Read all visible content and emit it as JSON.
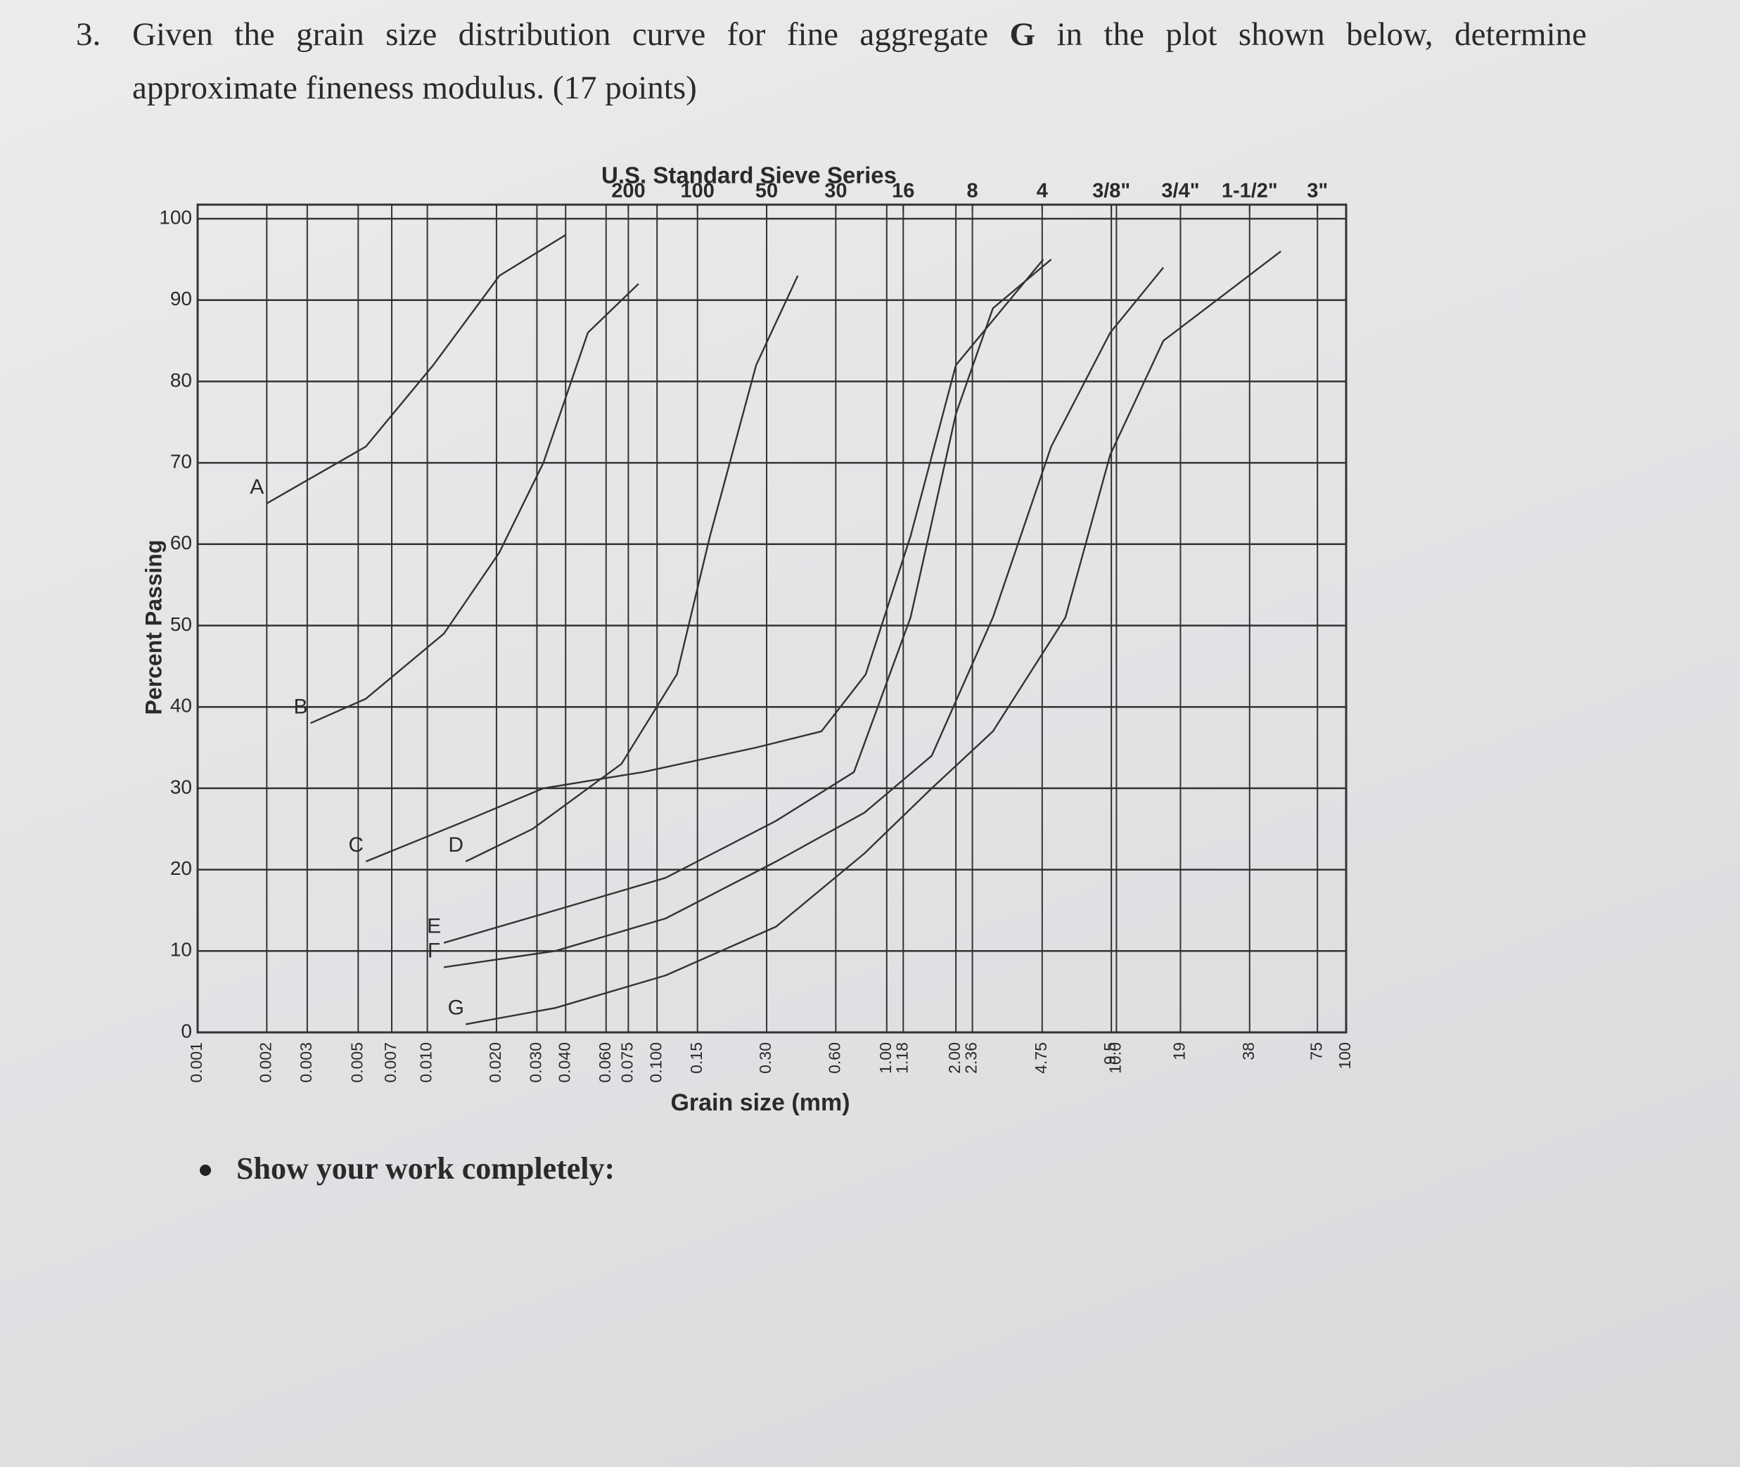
{
  "question": {
    "number": "3.",
    "line1": [
      "Given the grain size distribution curve for fine aggregate ",
      "G",
      " in the plot shown below, determine"
    ],
    "line2": "approximate fineness modulus. (17 points)"
  },
  "chart_data": {
    "type": "line",
    "title": "U.S. Standard Sieve Series",
    "x_label": "Grain size (mm)",
    "y_label": "Percent Passing",
    "x_log": true,
    "grid": true,
    "color": "#333333",
    "xlim": [
      0.001,
      100
    ],
    "ylim": [
      0,
      100
    ],
    "yticks": [
      0,
      10,
      20,
      30,
      40,
      50,
      60,
      70,
      80,
      90,
      100
    ],
    "xticks": [
      0.001,
      0.002,
      0.003,
      0.005,
      0.007,
      {
        "value": 0.01,
        "label": "0.010"
      },
      {
        "value": 0.02,
        "label": "0.020"
      },
      {
        "value": 0.03,
        "label": "0.030"
      },
      {
        "value": 0.04,
        "label": "0.040"
      },
      {
        "value": 0.06,
        "label": "0.060"
      },
      0.075,
      {
        "value": 0.1,
        "label": "0.100"
      },
      0.15,
      {
        "value": 0.3,
        "label": "0.30"
      },
      {
        "value": 0.6,
        "label": "0.60"
      },
      {
        "value": 1,
        "label": "1.00"
      },
      1.18,
      {
        "value": 2,
        "label": "2.00"
      },
      2.36,
      4.75,
      9.5,
      {
        "value": 10,
        "label": "10.0"
      },
      19,
      38,
      75,
      100
    ],
    "x2ticks": [
      {
        "value": 0.075,
        "label": "200"
      },
      {
        "value": 0.15,
        "label": "100"
      },
      {
        "value": 0.3,
        "label": "50"
      },
      {
        "value": 0.6,
        "label": "30"
      },
      {
        "value": 1.18,
        "label": "16"
      },
      {
        "value": 2.36,
        "label": "8"
      },
      {
        "value": 4.75,
        "label": "4"
      },
      {
        "value": 9.5,
        "label": "3/8\""
      },
      {
        "value": 19,
        "label": "3/4\""
      },
      {
        "value": 38,
        "label": "1-1/2\""
      },
      {
        "value": 75,
        "label": "3\""
      }
    ],
    "series": [
      {
        "name": "A",
        "x": [
          0.002,
          0.0054,
          0.0106,
          0.0206,
          0.04
        ],
        "values": [
          65,
          72,
          82,
          93,
          98
        ]
      },
      {
        "name": "B",
        "x": [
          0.0031,
          0.0054,
          0.0118,
          0.0206,
          0.032,
          0.05,
          0.083
        ],
        "values": [
          38,
          41,
          49,
          59,
          70,
          86,
          92
        ]
      },
      {
        "name": "C",
        "x": [
          0.0054,
          0.0147,
          0.032,
          0.087,
          0.27,
          0.52,
          0.81,
          1.27,
          2.0,
          4.8
        ],
        "values": [
          21,
          26,
          30,
          32,
          35,
          37,
          44,
          61,
          82,
          95
        ]
      },
      {
        "name": "D",
        "x": [
          0.0147,
          0.0287,
          0.07,
          0.122,
          0.17,
          0.27,
          0.41
        ],
        "values": [
          21,
          25,
          33,
          44,
          61,
          82,
          93
        ]
      },
      {
        "name": "E",
        "x": [
          0.0118,
          0.036,
          0.109,
          0.33,
          0.72,
          1.27,
          2.0,
          2.9,
          5.2
        ],
        "values": [
          11,
          15,
          19,
          26,
          32,
          51,
          76,
          89,
          95
        ]
      },
      {
        "name": "F",
        "x": [
          0.0118,
          0.036,
          0.109,
          0.33,
          0.8,
          1.57,
          2.9,
          5.2,
          9.4,
          16
        ],
        "values": [
          8,
          10,
          14,
          21,
          27,
          34,
          51,
          72,
          86,
          94
        ]
      },
      {
        "name": "G",
        "x": [
          0.0147,
          0.036,
          0.109,
          0.33,
          0.8,
          1.57,
          2.9,
          6,
          9.4,
          16,
          52
        ],
        "values": [
          1,
          3,
          7,
          13,
          22,
          30,
          37,
          51,
          71,
          85,
          96
        ]
      }
    ]
  },
  "note": "Show your work completely:"
}
